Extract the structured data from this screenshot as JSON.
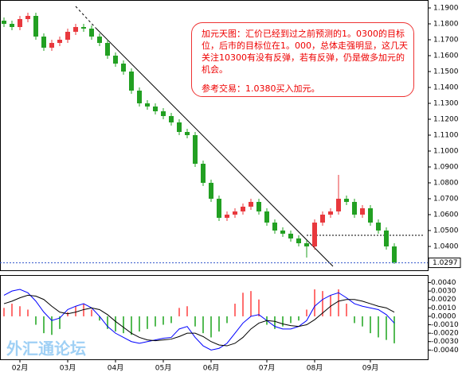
{
  "chart_data": {
    "type": "candlestick",
    "annotation_lines": [
      "加元天图：汇价已经到过之前预测的1。0300的目标",
      "位，后市的目标位在1。000，总体走强明显，这几天",
      "关注10300有没有反弹，若有反弹，仍是做多加元的",
      "机会。",
      "参考交易：1.0380买入加元。"
    ],
    "watermark": "外汇通论坛",
    "categories": [
      null,
      null,
      "02月",
      null,
      null,
      null,
      null,
      null,
      "03月",
      null,
      null,
      null,
      null,
      null,
      "04月",
      null,
      null,
      null,
      null,
      null,
      "05月",
      null,
      null,
      null,
      null,
      null,
      "06月",
      null,
      null,
      null,
      null,
      null,
      null,
      "07月",
      null,
      null,
      null,
      null,
      null,
      "08月",
      null,
      null,
      null,
      null,
      null,
      null,
      "09月",
      null,
      null,
      null
    ],
    "open": [
      1.182,
      1.18,
      1.178,
      1.183,
      1.185,
      1.172,
      1.165,
      1.168,
      1.17,
      1.175,
      1.178,
      1.177,
      1.172,
      1.168,
      1.16,
      1.155,
      1.15,
      1.138,
      1.13,
      1.128,
      1.125,
      1.122,
      1.118,
      1.112,
      1.11,
      1.092,
      1.08,
      1.07,
      1.058,
      1.06,
      1.062,
      1.065,
      1.068,
      1.062,
      1.055,
      1.05,
      1.048,
      1.045,
      1.042,
      1.04,
      1.055,
      1.06,
      1.062,
      1.07,
      1.068,
      1.06,
      1.064,
      1.055,
      1.05,
      1.04
    ],
    "high": [
      1.184,
      1.182,
      1.185,
      1.187,
      1.187,
      1.174,
      1.17,
      1.172,
      1.177,
      1.18,
      1.18,
      1.179,
      1.174,
      1.17,
      1.162,
      1.157,
      1.152,
      1.14,
      1.132,
      1.13,
      1.127,
      1.124,
      1.12,
      1.114,
      1.112,
      1.094,
      1.082,
      1.072,
      1.062,
      1.064,
      1.067,
      1.07,
      1.07,
      1.064,
      1.057,
      1.052,
      1.05,
      1.047,
      1.044,
      1.057,
      1.062,
      1.064,
      1.085,
      1.072,
      1.07,
      1.066,
      1.066,
      1.057,
      1.052,
      1.042
    ],
    "low": [
      1.178,
      1.176,
      1.176,
      1.181,
      1.17,
      1.163,
      1.163,
      1.166,
      1.168,
      1.173,
      1.175,
      1.17,
      1.166,
      1.158,
      1.153,
      1.148,
      1.136,
      1.128,
      1.126,
      1.123,
      1.12,
      1.116,
      1.11,
      1.108,
      1.09,
      1.078,
      1.068,
      1.056,
      1.056,
      1.058,
      1.06,
      1.063,
      1.06,
      1.053,
      1.048,
      1.046,
      1.043,
      1.04,
      1.033,
      1.038,
      1.053,
      1.058,
      1.06,
      1.066,
      1.058,
      1.058,
      1.053,
      1.048,
      1.038,
      1.029
    ],
    "close": [
      1.18,
      1.178,
      1.183,
      1.185,
      1.172,
      1.165,
      1.168,
      1.17,
      1.175,
      1.178,
      1.177,
      1.172,
      1.168,
      1.16,
      1.155,
      1.15,
      1.138,
      1.13,
      1.128,
      1.125,
      1.122,
      1.118,
      1.112,
      1.11,
      1.092,
      1.08,
      1.07,
      1.058,
      1.06,
      1.062,
      1.065,
      1.068,
      1.062,
      1.055,
      1.05,
      1.048,
      1.045,
      1.042,
      1.04,
      1.055,
      1.06,
      1.062,
      1.07,
      1.068,
      1.06,
      1.064,
      1.055,
      1.05,
      1.04,
      1.03
    ],
    "up_color": "#e8383d",
    "down_color": "#22a022",
    "ylim": [
      1.025,
      1.195
    ],
    "yticks": [
      {
        "value": 1.03,
        "label": "1.0300"
      },
      {
        "value": 1.04,
        "label": "1.0400"
      },
      {
        "value": 1.05,
        "label": "1.0500"
      },
      {
        "value": 1.06,
        "label": "1.0600"
      },
      {
        "value": 1.07,
        "label": "1.0700"
      },
      {
        "value": 1.08,
        "label": "1.0800"
      },
      {
        "value": 1.09,
        "label": "1.0900"
      },
      {
        "value": 1.1,
        "label": "1.1000"
      },
      {
        "value": 1.11,
        "label": "1.1100"
      },
      {
        "value": 1.12,
        "label": "1.1200"
      },
      {
        "value": 1.13,
        "label": "1.1300"
      },
      {
        "value": 1.14,
        "label": "1.1400"
      },
      {
        "value": 1.15,
        "label": "1.1500"
      },
      {
        "value": 1.16,
        "label": "1.1600"
      },
      {
        "value": 1.17,
        "label": "1.1700"
      },
      {
        "value": 1.18,
        "label": "1.1800"
      },
      {
        "value": 1.19,
        "label": "1.1900"
      }
    ],
    "last_price": 1.0297,
    "macd": {
      "ylim": [
        -0.0051,
        0.0049
      ],
      "yticks": [
        {
          "value": 0.004,
          "label": "0.0040"
        },
        {
          "value": 0.003,
          "label": "0.0030"
        },
        {
          "value": 0.002,
          "label": "0.0020"
        },
        {
          "value": 0.001,
          "label": "0.0010"
        },
        {
          "value": 0,
          "label": "0.0000"
        },
        {
          "value": -0.001,
          "label": "-0.0010"
        },
        {
          "value": -0.002,
          "label": "-0.0020"
        },
        {
          "value": -0.003,
          "label": "-0.0030"
        },
        {
          "value": -0.004,
          "label": "-0.0040"
        }
      ],
      "histogram": [
        0.001,
        0.0015,
        0.0012,
        0.0008,
        -0.001,
        -0.002,
        -0.0022,
        -0.0015,
        0.0005,
        0.0012,
        0.0015,
        0.0008,
        -0.0005,
        -0.0015,
        -0.0018,
        -0.002,
        -0.0022,
        -0.0018,
        -0.0015,
        -0.0012,
        -0.001,
        -0.0008,
        0.001,
        0.0012,
        -0.0012,
        -0.002,
        -0.0025,
        -0.0018,
        -0.0008,
        0.0015,
        0.0028,
        0.003,
        0.002,
        -0.001,
        -0.0015,
        -0.0012,
        -0.0008,
        -0.0005,
        0.0008,
        0.0032,
        0.003,
        0.0025,
        0.0032,
        0.0015,
        -0.0008,
        -0.0012,
        -0.002,
        -0.0025,
        -0.0028,
        -0.0032
      ],
      "pos_color": "#ff7070",
      "neg_color": "#55bb55",
      "lines": [
        {
          "color": "#0000ff",
          "values": [
            0.0025,
            0.003,
            0.0032,
            0.0028,
            0.0018,
            0.0005,
            -0.0005,
            -0.0002,
            0.0008,
            0.0012,
            0.0015,
            0.001,
            0,
            -0.0012,
            -0.002,
            -0.0025,
            -0.003,
            -0.0032,
            -0.003,
            -0.0028,
            -0.0026,
            -0.0025,
            -0.0015,
            -0.0012,
            -0.0025,
            -0.0035,
            -0.004,
            -0.0038,
            -0.0032,
            -0.002,
            -0.0008,
            0,
            0.0002,
            -0.0005,
            -0.0012,
            -0.0015,
            -0.0015,
            -0.0012,
            -0.0005,
            0.0012,
            0.002,
            0.0025,
            0.0028,
            0.0022,
            0.0015,
            0.0012,
            0.001,
            0.0008,
            0.0002,
            -0.0008
          ]
        },
        {
          "color": "#000000",
          "values": [
            0.0015,
            0.0018,
            0.0022,
            0.0025,
            0.0024,
            0.002,
            0.0012,
            0.0005,
            0.0003,
            0.0005,
            0.0008,
            0.001,
            0.0008,
            0.0002,
            -0.0006,
            -0.0013,
            -0.002,
            -0.0025,
            -0.0028,
            -0.0029,
            -0.0028,
            -0.0027,
            -0.0024,
            -0.002,
            -0.002,
            -0.0024,
            -0.003,
            -0.0034,
            -0.0035,
            -0.0032,
            -0.0025,
            -0.0015,
            -0.0008,
            -0.0005,
            -0.0006,
            -0.0009,
            -0.0011,
            -0.0012,
            -0.001,
            -0.0004,
            0.0004,
            0.0012,
            0.0018,
            0.002,
            0.002,
            0.0018,
            0.0015,
            0.0012,
            0.001,
            0.0005
          ]
        }
      ]
    }
  }
}
